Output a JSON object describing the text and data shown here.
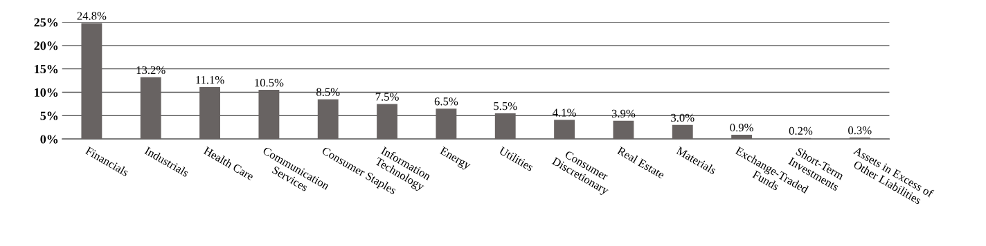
{
  "chart_data": {
    "type": "bar",
    "categories": [
      "Financials",
      "Industrials",
      "Health Care",
      "Communication\nServices",
      "Consumer Staples",
      "Information\nTechnology",
      "Energy",
      "Utilities",
      "Consumer\nDiscretionary",
      "Real Estate",
      "Materials",
      "Exchange-Traded\nFunds",
      "Short-Term\nInvestments",
      "Assets in Excess of\nOther Liabilities"
    ],
    "values": [
      24.8,
      13.2,
      11.1,
      10.5,
      8.5,
      7.5,
      6.5,
      5.5,
      4.1,
      3.9,
      3.0,
      0.9,
      0.2,
      0.3
    ],
    "value_labels": [
      "24.8%",
      "13.2%",
      "11.1%",
      "10.5%",
      "8.5%",
      "7.5%",
      "6.5%",
      "5.5%",
      "4.1%",
      "3.9%",
      "3.0%",
      "0.9%",
      "0.2%",
      "0.3%"
    ],
    "color": "#686362",
    "ylim": [
      0,
      25
    ],
    "yticks": [
      {
        "value": 0,
        "label": "0%"
      },
      {
        "value": 5,
        "label": "5%"
      },
      {
        "value": 10,
        "label": "10%"
      },
      {
        "value": 15,
        "label": "15%"
      },
      {
        "value": 20,
        "label": "20%"
      },
      {
        "value": 25,
        "label": "25%"
      }
    ],
    "grid": "y"
  }
}
